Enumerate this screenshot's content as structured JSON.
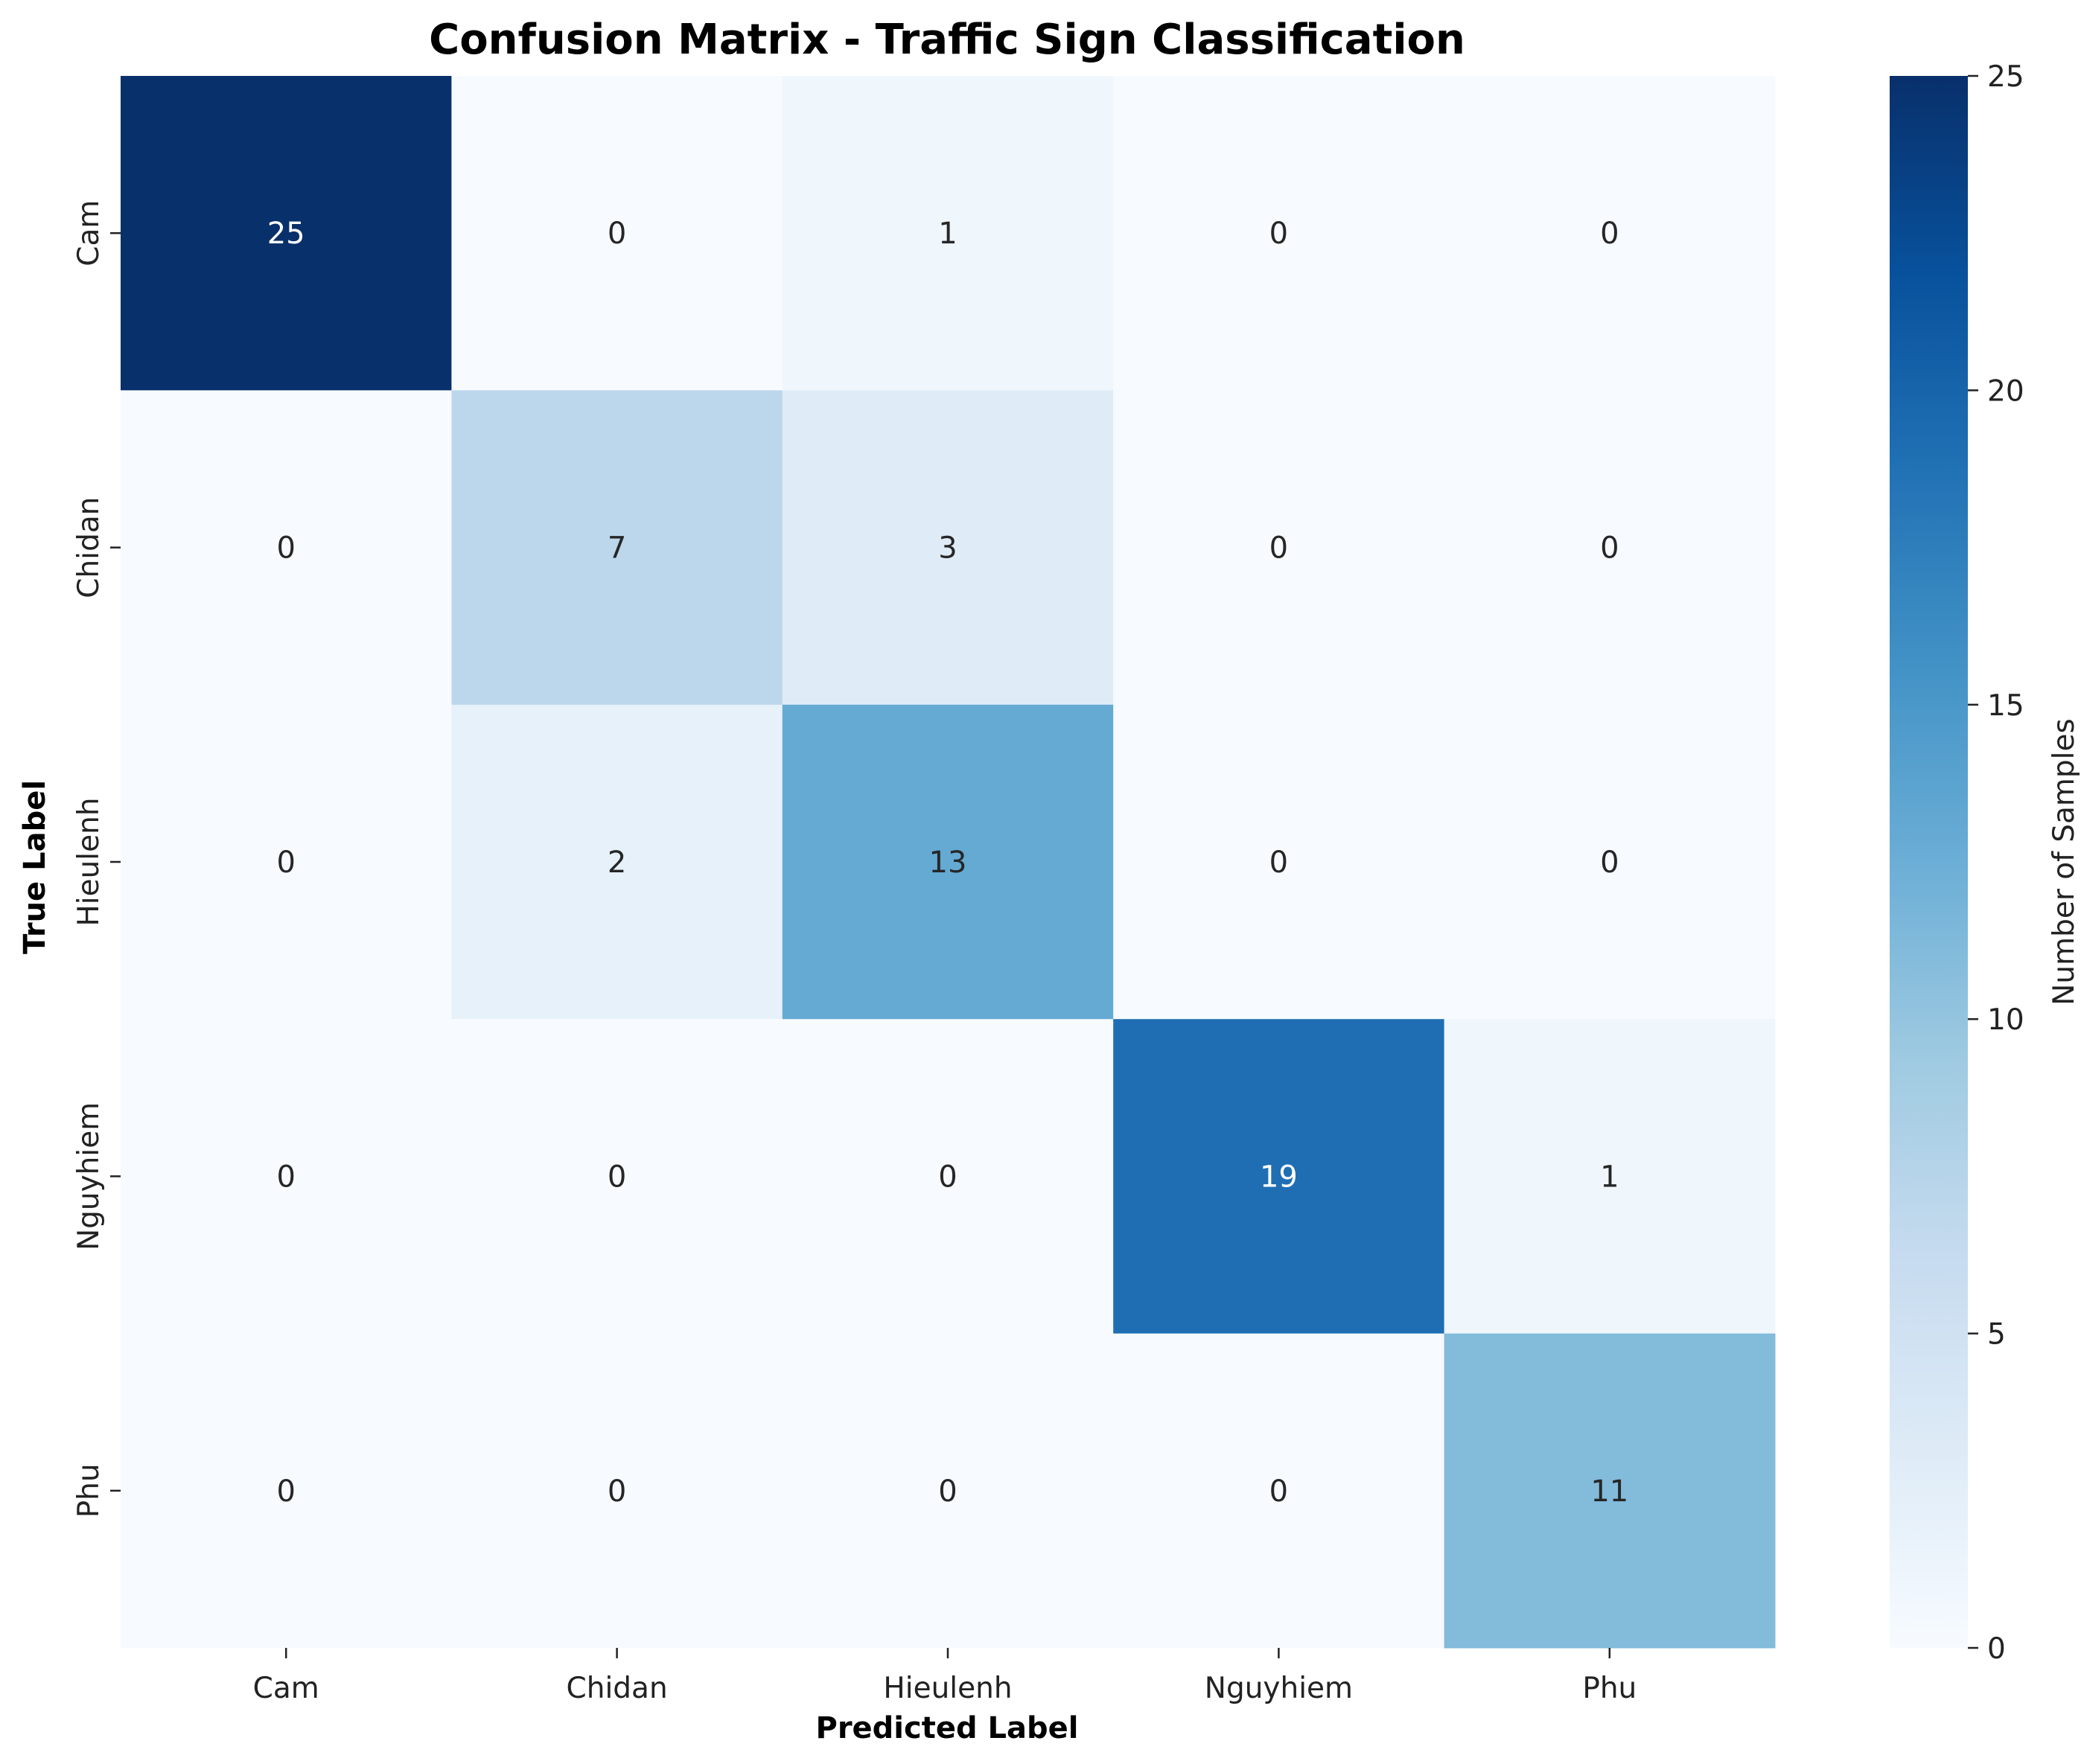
{
  "chart_data": {
    "type": "heatmap",
    "title": "Confusion Matrix - Traffic Sign Classification",
    "xlabel": "Predicted Label",
    "ylabel": "True Label",
    "x_categories": [
      "Cam",
      "Chidan",
      "Hieulenh",
      "Nguyhiem",
      "Phu"
    ],
    "y_categories": [
      "Cam",
      "Chidan",
      "Hieulenh",
      "Nguyhiem",
      "Phu"
    ],
    "values": [
      [
        25,
        0,
        1,
        0,
        0
      ],
      [
        0,
        7,
        3,
        0,
        0
      ],
      [
        0,
        2,
        13,
        0,
        0
      ],
      [
        0,
        0,
        0,
        19,
        1
      ],
      [
        0,
        0,
        0,
        0,
        11
      ]
    ],
    "colorbar": {
      "label": "Number of Samples",
      "range": [
        0,
        25
      ],
      "ticks": [
        0,
        5,
        10,
        15,
        20,
        25
      ],
      "colormap": "Blues"
    },
    "annotation_text_colors": {
      "dark_bg": "#ffffff",
      "light_bg": "#262626"
    }
  }
}
